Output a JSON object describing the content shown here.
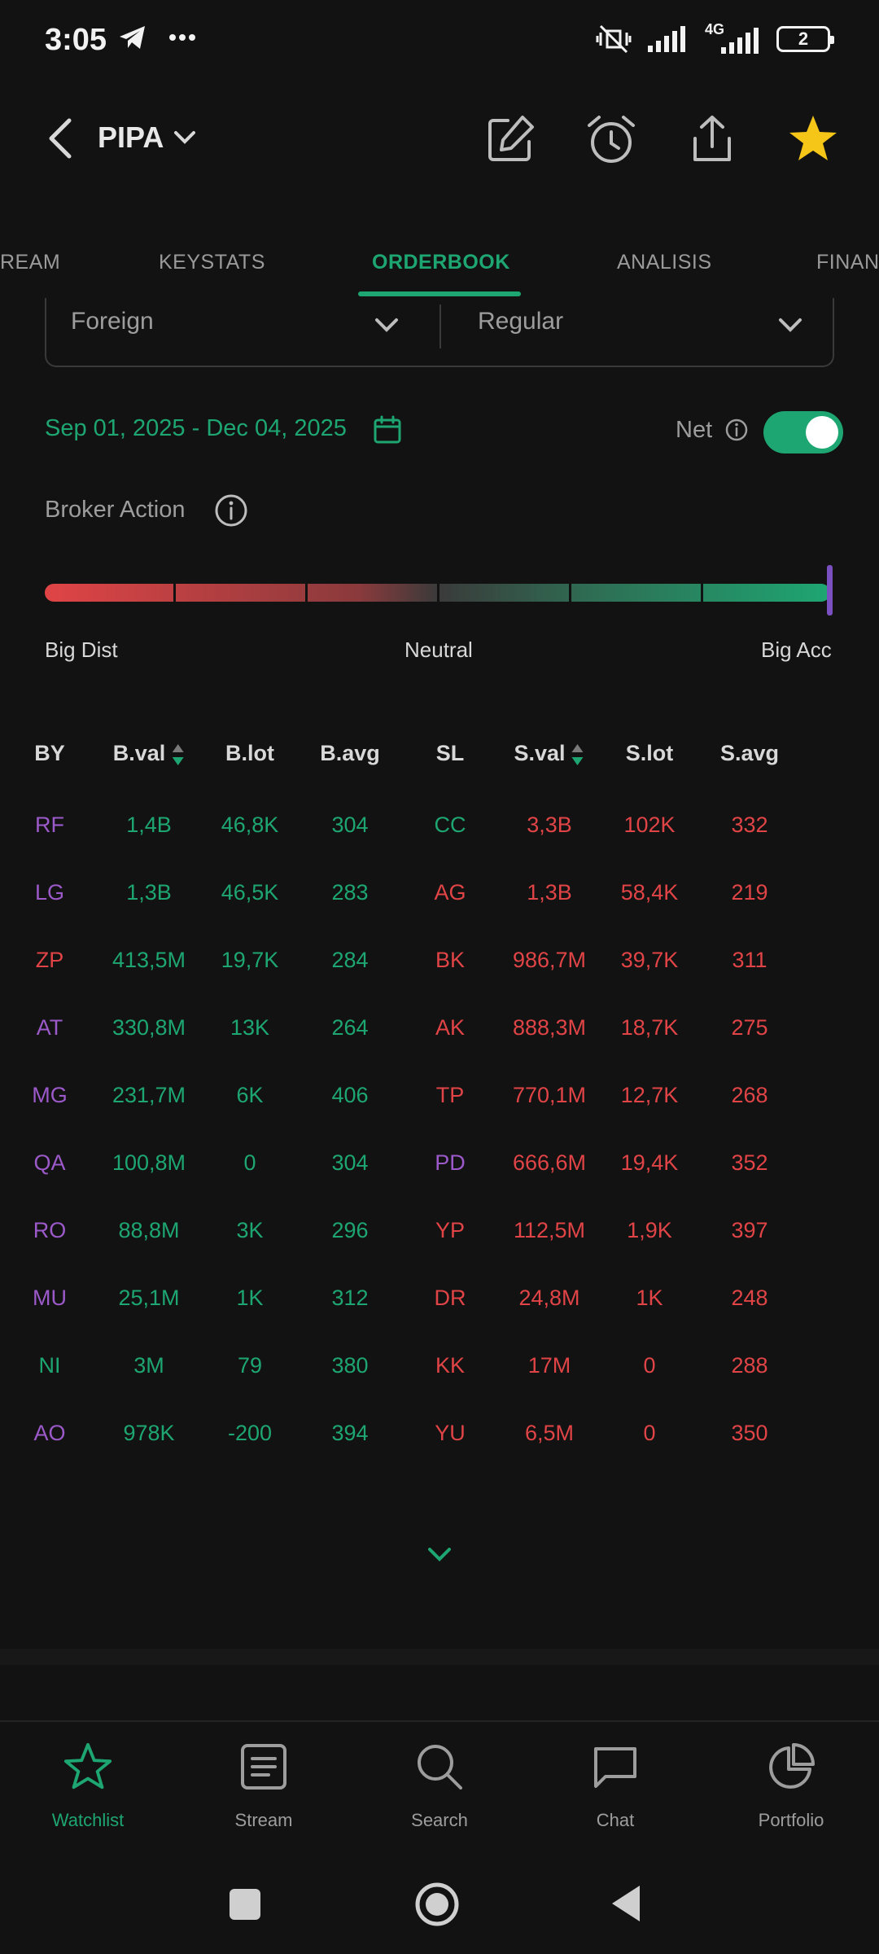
{
  "status": {
    "time": "3:05",
    "network": "4G",
    "battery": "2"
  },
  "header": {
    "symbol": "PIPA"
  },
  "tabs": [
    {
      "label": "STREAM",
      "visible": "REAM"
    },
    {
      "label": "KEYSTATS",
      "visible": "KEYSTATS"
    },
    {
      "label": "ORDERBOOK",
      "visible": "ORDERBOOK",
      "active": true
    },
    {
      "label": "ANALISIS",
      "visible": "ANALISIS"
    },
    {
      "label": "FINANCIALS",
      "visible": "FINAN"
    }
  ],
  "filters": {
    "investor": "Foreign",
    "market": "Regular"
  },
  "date_range": "Sep 01, 2025 - Dec 04, 2025",
  "net": {
    "label": "Net",
    "enabled": true
  },
  "broker_action": {
    "title": "Broker Action",
    "labels": {
      "left": "Big Dist",
      "center": "Neutral",
      "right": "Big Acc"
    },
    "level": 1.0
  },
  "table": {
    "headers": [
      "BY",
      "B.val",
      "B.lot",
      "B.avg",
      "SL",
      "S.val",
      "S.lot",
      "S.avg"
    ],
    "rows": [
      {
        "by": "RF",
        "by_color": "purple",
        "bval": "1,4B",
        "blot": "46,8K",
        "bavg": "304",
        "sl": "CC",
        "sl_color": "green",
        "sval": "3,3B",
        "slot": "102K",
        "savg": "332"
      },
      {
        "by": "LG",
        "by_color": "purple",
        "bval": "1,3B",
        "blot": "46,5K",
        "bavg": "283",
        "sl": "AG",
        "sl_color": "red",
        "sval": "1,3B",
        "slot": "58,4K",
        "savg": "219"
      },
      {
        "by": "ZP",
        "by_color": "red",
        "bval": "413,5M",
        "blot": "19,7K",
        "bavg": "284",
        "sl": "BK",
        "sl_color": "red",
        "sval": "986,7M",
        "slot": "39,7K",
        "savg": "311"
      },
      {
        "by": "AT",
        "by_color": "purple",
        "bval": "330,8M",
        "blot": "13K",
        "bavg": "264",
        "sl": "AK",
        "sl_color": "red",
        "sval": "888,3M",
        "slot": "18,7K",
        "savg": "275"
      },
      {
        "by": "MG",
        "by_color": "purple",
        "bval": "231,7M",
        "blot": "6K",
        "bavg": "406",
        "sl": "TP",
        "sl_color": "red",
        "sval": "770,1M",
        "slot": "12,7K",
        "savg": "268"
      },
      {
        "by": "QA",
        "by_color": "purple",
        "bval": "100,8M",
        "blot": "0",
        "bavg": "304",
        "sl": "PD",
        "sl_color": "purple",
        "sval": "666,6M",
        "slot": "19,4K",
        "savg": "352"
      },
      {
        "by": "RO",
        "by_color": "purple",
        "bval": "88,8M",
        "blot": "3K",
        "bavg": "296",
        "sl": "YP",
        "sl_color": "red",
        "sval": "112,5M",
        "slot": "1,9K",
        "savg": "397"
      },
      {
        "by": "MU",
        "by_color": "purple",
        "bval": "25,1M",
        "blot": "1K",
        "bavg": "312",
        "sl": "DR",
        "sl_color": "red",
        "sval": "24,8M",
        "slot": "1K",
        "savg": "248"
      },
      {
        "by": "NI",
        "by_color": "green",
        "bval": "3M",
        "blot": "79",
        "bavg": "380",
        "sl": "KK",
        "sl_color": "red",
        "sval": "17M",
        "slot": "0",
        "savg": "288"
      },
      {
        "by": "AO",
        "by_color": "purple",
        "bval": "978K",
        "blot": "-200",
        "bavg": "394",
        "sl": "YU",
        "sl_color": "red",
        "sval": "6,5M",
        "slot": "0",
        "savg": "350"
      }
    ]
  },
  "bottom_nav": [
    {
      "label": "Watchlist",
      "icon": "star-outline-icon",
      "active": true
    },
    {
      "label": "Stream",
      "icon": "stream-icon"
    },
    {
      "label": "Search",
      "icon": "search-icon"
    },
    {
      "label": "Chat",
      "icon": "chat-icon"
    },
    {
      "label": "Portfolio",
      "icon": "pie-chart-icon"
    }
  ],
  "colors": {
    "accent": "#1ea672",
    "buy": "#1ea672",
    "sell": "#e04446",
    "broker_purple": "#9b59c9",
    "star": "#f5c518"
  }
}
